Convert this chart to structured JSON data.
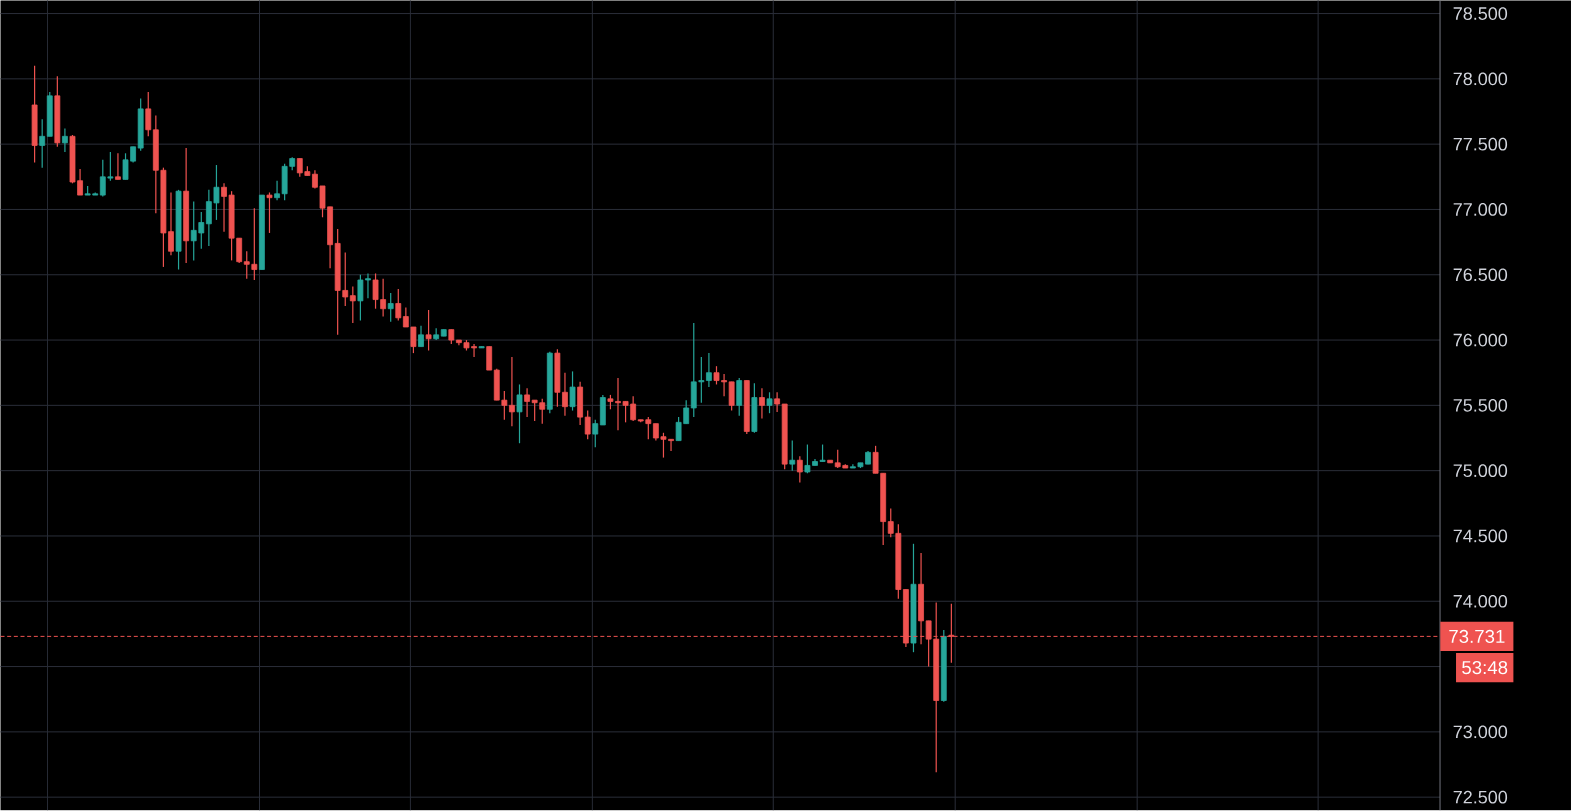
{
  "chart_data": {
    "type": "candlestick",
    "categories": [
      null,
      null,
      null,
      null,
      null,
      null,
      null,
      null,
      null,
      null,
      null,
      null,
      null,
      null,
      null,
      null,
      null,
      null,
      null,
      null,
      null,
      null,
      null,
      null,
      null,
      null,
      null,
      null,
      null,
      null,
      null,
      null,
      null,
      null,
      null,
      null,
      null,
      null,
      null,
      null,
      null,
      null,
      null,
      null,
      null,
      null,
      null,
      null,
      null,
      null,
      null,
      null,
      null,
      null,
      null,
      null,
      null,
      null,
      null,
      null,
      null,
      null,
      null,
      null,
      null,
      null,
      null,
      null,
      null,
      null,
      null,
      null,
      null,
      null,
      null,
      null,
      null,
      null,
      null,
      null,
      null,
      null,
      null,
      null,
      null,
      null,
      null,
      null,
      null,
      null,
      null,
      null,
      null,
      null,
      null,
      null,
      null,
      null,
      null,
      null,
      null,
      null,
      null,
      null,
      null,
      null,
      null,
      null,
      null,
      null,
      null,
      null,
      null,
      null,
      null,
      null,
      null,
      null,
      null,
      null,
      null,
      null,
      null,
      null,
      null,
      null,
      null,
      null,
      null,
      null,
      null,
      null,
      null,
      null,
      null,
      null,
      null,
      null,
      null,
      null,
      null,
      null,
      null,
      null,
      null,
      null,
      null,
      null,
      null,
      null,
      null,
      null,
      null,
      null,
      null,
      null,
      null,
      null,
      null,
      null,
      null,
      null,
      null,
      null,
      null,
      null,
      null,
      null,
      null,
      null,
      null,
      null,
      null,
      null,
      null,
      null,
      null,
      null,
      null,
      null,
      null,
      null,
      null,
      null,
      null,
      null,
      null,
      null,
      null,
      null
    ],
    "ohlc": [
      null,
      null,
      null,
      null,
      [
        77.8,
        78.1,
        77.36,
        77.49
      ],
      [
        77.49,
        77.69,
        77.32,
        77.56
      ],
      [
        77.56,
        77.9,
        77.56,
        77.87
      ],
      [
        77.87,
        78.02,
        77.48,
        77.51
      ],
      [
        77.51,
        77.62,
        77.44,
        77.56
      ],
      [
        77.56,
        77.57,
        77.2,
        77.21
      ],
      [
        77.22,
        77.31,
        77.11,
        77.11
      ],
      [
        77.11,
        77.18,
        77.11,
        77.12
      ],
      [
        77.11,
        77.13,
        77.11,
        77.12
      ],
      [
        77.11,
        77.38,
        77.1,
        77.25
      ],
      [
        77.24,
        77.44,
        77.22,
        77.25
      ],
      [
        77.25,
        77.43,
        77.23,
        77.23
      ],
      [
        77.23,
        77.43,
        77.23,
        77.38
      ],
      [
        77.37,
        77.48,
        77.36,
        77.48
      ],
      [
        77.47,
        77.85,
        77.45,
        77.77
      ],
      [
        77.77,
        77.9,
        77.56,
        77.61
      ],
      [
        77.61,
        77.72,
        76.97,
        77.3
      ],
      [
        77.3,
        77.32,
        76.56,
        76.82
      ],
      [
        76.83,
        77.13,
        76.65,
        76.68
      ],
      [
        76.68,
        77.15,
        76.54,
        77.14
      ],
      [
        77.14,
        77.47,
        76.59,
        76.76
      ],
      [
        76.76,
        77.06,
        76.61,
        76.84
      ],
      [
        76.82,
        76.98,
        76.7,
        76.9
      ],
      [
        76.89,
        77.15,
        76.72,
        77.06
      ],
      [
        77.05,
        77.34,
        76.92,
        77.17
      ],
      [
        77.17,
        77.2,
        76.83,
        77.1
      ],
      [
        77.11,
        77.14,
        76.61,
        76.78
      ],
      [
        76.78,
        76.78,
        76.59,
        76.6
      ],
      [
        76.6,
        76.68,
        76.47,
        76.58
      ],
      [
        76.58,
        77.01,
        76.46,
        76.54
      ],
      [
        76.54,
        77.11,
        76.54,
        77.11
      ],
      [
        77.11,
        77.13,
        76.82,
        77.09
      ],
      [
        77.09,
        77.22,
        77.07,
        77.12
      ],
      [
        77.12,
        77.35,
        77.07,
        77.33
      ],
      [
        77.33,
        77.4,
        77.3,
        77.39
      ],
      [
        77.39,
        77.39,
        77.25,
        77.28
      ],
      [
        77.29,
        77.33,
        77.26,
        77.26
      ],
      [
        77.27,
        77.3,
        77.16,
        77.17
      ],
      [
        77.18,
        77.18,
        76.94,
        77.01
      ],
      [
        77.02,
        77.02,
        76.55,
        76.73
      ],
      [
        76.74,
        76.85,
        76.04,
        76.38
      ],
      [
        76.38,
        76.67,
        76.26,
        76.33
      ],
      [
        76.34,
        76.41,
        76.13,
        76.3
      ],
      [
        76.3,
        76.5,
        76.15,
        76.46
      ],
      [
        76.46,
        76.51,
        76.32,
        76.47
      ],
      [
        76.46,
        76.51,
        76.24,
        76.31
      ],
      [
        76.31,
        76.47,
        76.18,
        76.24
      ],
      [
        76.24,
        76.36,
        76.14,
        76.28
      ],
      [
        76.28,
        76.39,
        76.15,
        76.17
      ],
      [
        76.18,
        76.25,
        76.1,
        76.1
      ],
      [
        76.1,
        76.1,
        75.9,
        75.95
      ],
      [
        75.95,
        76.11,
        75.95,
        76.04
      ],
      [
        76.04,
        76.23,
        75.92,
        76.01
      ],
      [
        76.01,
        76.09,
        76.0,
        76.04
      ],
      [
        76.03,
        76.08,
        76.03,
        76.08
      ],
      [
        76.08,
        76.08,
        75.97,
        76.0
      ],
      [
        76.0,
        76.0,
        75.96,
        75.98
      ],
      [
        75.98,
        76.0,
        75.92,
        75.94
      ],
      [
        75.95,
        75.97,
        75.87,
        75.94
      ],
      [
        75.94,
        75.95,
        75.94,
        75.95
      ],
      [
        75.95,
        75.95,
        75.77,
        75.77
      ],
      [
        75.77,
        75.78,
        75.54,
        75.54
      ],
      [
        75.54,
        75.61,
        75.39,
        75.5
      ],
      [
        75.5,
        75.87,
        75.34,
        75.45
      ],
      [
        75.45,
        75.66,
        75.21,
        75.58
      ],
      [
        75.58,
        75.63,
        75.41,
        75.53
      ],
      [
        75.54,
        75.54,
        75.38,
        75.52
      ],
      [
        75.52,
        75.55,
        75.36,
        75.47
      ],
      [
        75.47,
        75.91,
        75.44,
        75.9
      ],
      [
        75.9,
        75.93,
        75.49,
        75.6
      ],
      [
        75.6,
        75.75,
        75.42,
        75.49
      ],
      [
        75.49,
        75.76,
        75.46,
        75.64
      ],
      [
        75.64,
        75.68,
        75.35,
        75.41
      ],
      [
        75.41,
        75.46,
        75.24,
        75.28
      ],
      [
        75.28,
        75.39,
        75.18,
        75.36
      ],
      [
        75.35,
        75.58,
        75.35,
        75.56
      ],
      [
        75.55,
        75.58,
        75.47,
        75.53
      ],
      [
        75.53,
        75.71,
        75.31,
        75.52
      ],
      [
        75.53,
        75.53,
        75.37,
        75.5
      ],
      [
        75.51,
        75.57,
        75.38,
        75.39
      ],
      [
        75.39,
        75.39,
        75.37,
        75.38
      ],
      [
        75.39,
        75.41,
        75.24,
        75.36
      ],
      [
        75.36,
        75.36,
        75.23,
        75.25
      ],
      [
        75.26,
        75.29,
        75.1,
        75.24
      ],
      [
        75.24,
        75.24,
        75.15,
        75.23
      ],
      [
        75.23,
        75.41,
        75.23,
        75.37
      ],
      [
        75.36,
        75.54,
        75.36,
        75.48
      ],
      [
        75.48,
        76.13,
        75.41,
        75.68
      ],
      [
        75.68,
        75.87,
        75.52,
        75.69
      ],
      [
        75.69,
        75.9,
        75.64,
        75.75
      ],
      [
        75.75,
        75.8,
        75.66,
        75.69
      ],
      [
        75.69,
        75.74,
        75.57,
        75.68
      ],
      [
        75.68,
        75.68,
        75.46,
        75.5
      ],
      [
        75.5,
        75.71,
        75.42,
        75.69
      ],
      [
        75.69,
        75.69,
        75.28,
        75.3
      ],
      [
        75.3,
        75.67,
        75.29,
        75.56
      ],
      [
        75.56,
        75.63,
        75.4,
        75.5
      ],
      [
        75.5,
        75.6,
        75.44,
        75.55
      ],
      [
        75.55,
        75.6,
        75.45,
        75.51
      ],
      [
        75.51,
        75.51,
        75.01,
        75.05
      ],
      [
        75.05,
        75.23,
        75.0,
        75.08
      ],
      [
        75.08,
        75.11,
        74.91,
        74.99
      ],
      [
        74.99,
        75.2,
        74.98,
        75.04
      ],
      [
        75.04,
        75.09,
        75.04,
        75.07
      ],
      [
        75.07,
        75.2,
        75.07,
        75.08
      ],
      [
        75.08,
        75.08,
        75.06,
        75.06
      ],
      [
        75.06,
        75.16,
        75.02,
        75.03
      ],
      [
        75.04,
        75.05,
        75.02,
        75.02
      ],
      [
        75.02,
        75.05,
        75.02,
        75.03
      ],
      [
        75.03,
        75.06,
        75.02,
        75.06
      ],
      [
        75.05,
        75.15,
        75.05,
        75.14
      ],
      [
        75.14,
        75.19,
        74.98,
        74.98
      ],
      [
        74.98,
        74.98,
        74.43,
        74.61
      ],
      [
        74.61,
        74.71,
        74.49,
        74.52
      ],
      [
        74.52,
        74.59,
        74.02,
        74.09
      ],
      [
        74.09,
        74.09,
        73.65,
        73.68
      ],
      [
        73.68,
        74.44,
        73.61,
        74.13
      ],
      [
        74.13,
        74.37,
        73.67,
        73.85
      ],
      [
        73.85,
        73.85,
        73.5,
        73.71
      ],
      [
        73.71,
        73.99,
        72.69,
        73.24
      ],
      [
        73.24,
        73.78,
        73.23,
        73.731
      ],
      [
        73.74,
        73.98,
        73.53,
        73.731
      ],
      null,
      null,
      null,
      null,
      null,
      null,
      null,
      null,
      null,
      null,
      null,
      null,
      null,
      null,
      null,
      null,
      null,
      null,
      null,
      null,
      null,
      null,
      null,
      null,
      null,
      null,
      null,
      null,
      null,
      null,
      null,
      null,
      null,
      null,
      null,
      null,
      null,
      null,
      null,
      null,
      null,
      null,
      null,
      null,
      null,
      null,
      null,
      null,
      null,
      null,
      null,
      null,
      null,
      null,
      null,
      null,
      null,
      null,
      null,
      null,
      null,
      null,
      null,
      null
    ],
    "ylim": [
      72.4,
      78.6
    ],
    "yticks": [
      {
        "value": 72.5,
        "label": "72.500"
      },
      {
        "value": 73.0,
        "label": "73.000"
      },
      {
        "value": 73.5,
        "label": null
      },
      {
        "value": 74.0,
        "label": "74.000"
      },
      {
        "value": 74.5,
        "label": "74.500"
      },
      {
        "value": 75.0,
        "label": "75.000"
      },
      {
        "value": 75.5,
        "label": "75.500"
      },
      {
        "value": 76.0,
        "label": "76.000"
      },
      {
        "value": 76.5,
        "label": "76.500"
      },
      {
        "value": 77.0,
        "label": "77.000"
      },
      {
        "value": 77.5,
        "label": "77.500"
      },
      {
        "value": 78.0,
        "label": "78.000"
      },
      {
        "value": 78.5,
        "label": "78.500"
      }
    ],
    "tick_labels": "y",
    "grid": true,
    "ref_lines": [
      {
        "axis": "y",
        "value": 73.731,
        "label": "73.731",
        "color": "#ef5350",
        "line_style": "dashed"
      }
    ],
    "annotations": [
      "53:48"
    ]
  }
}
